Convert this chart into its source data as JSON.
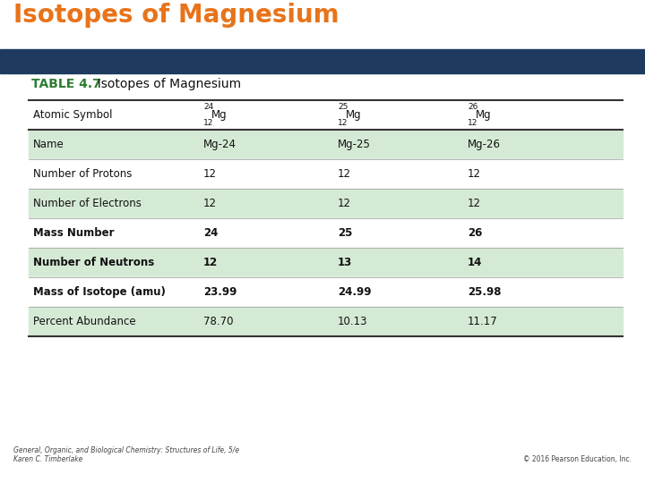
{
  "title": "Isotopes of Magnesium",
  "title_color": "#E8731A",
  "header_bar_color": "#1E3A5F",
  "table_title_bold": "TABLE 4.7",
  "table_title_normal": "  Isotopes of Magnesium",
  "table_title_color": "#2E7D32",
  "bg_color": "#FFFFFF",
  "row_labels": [
    "Atomic Symbol",
    "Name",
    "Number of Protons",
    "Number of Electrons",
    "Mass Number",
    "Number of Neutrons",
    "Mass of Isotope (amu)",
    "Percent Abundance"
  ],
  "isotope_headers": [
    {
      "sup": "24",
      "sub": "12",
      "base": "Mg"
    },
    {
      "sup": "25",
      "sub": "12",
      "base": "Mg"
    },
    {
      "sup": "26",
      "sub": "12",
      "base": "Mg"
    }
  ],
  "col1_values": [
    "",
    "Mg-24",
    "12",
    "12",
    "24",
    "12",
    "23.99",
    "78.70"
  ],
  "col2_values": [
    "",
    "Mg-25",
    "12",
    "12",
    "25",
    "13",
    "24.99",
    "10.13"
  ],
  "col3_values": [
    "",
    "Mg-26",
    "12",
    "12",
    "26",
    "14",
    "25.98",
    "11.17"
  ],
  "bold_rows": [
    4,
    5,
    6
  ],
  "shaded_rows": [
    1,
    3,
    5,
    7
  ],
  "shaded_color": "#D5EAD5",
  "footer_left": "General, Organic, and Biological Chemistry: Structures of Life, 5/e\nKaren C. Timberlake",
  "footer_right": "© 2016 Pearson Education, Inc.",
  "dark_line_color": "#333333",
  "normal_row_bg": "#FFFFFF",
  "title_fontsize": 20,
  "table_title_fontsize": 10,
  "row_fontsize": 8.5,
  "footer_fontsize": 5.5
}
